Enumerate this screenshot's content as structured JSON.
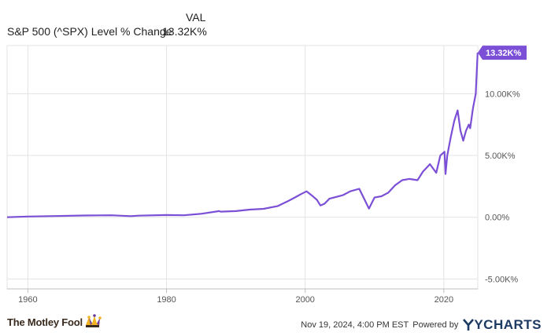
{
  "legend": {
    "column_header": "VAL",
    "series_name": "S&P 500 (^SPX) Level % Change",
    "series_value": "13.32K%"
  },
  "chart_data": {
    "type": "line",
    "x_ticks": [
      "1960",
      "1980",
      "2000",
      "2020"
    ],
    "y_ticks": [
      "-5.00K%",
      "0.00%",
      "5.00K%",
      "10.00K%"
    ],
    "xlim": [
      1957,
      2024.9
    ],
    "ylim": [
      -5800,
      13900
    ],
    "grid": true,
    "end_label": "13.32K%",
    "colors": {
      "line": "#7b4fd6",
      "grid": "#e3e3e3",
      "axis": "#bfbfbf",
      "label_bg": "#7b4fd6",
      "label_text": "#ffffff"
    },
    "series": [
      {
        "x": [
          1957.0,
          1960,
          1964,
          1968,
          1972,
          1974.8,
          1976,
          1980,
          1982.5,
          1985,
          1987.6,
          1987.8,
          1990,
          1992,
          1994,
          1996,
          1997.5,
          1998.5,
          1999.5,
          2000.2,
          2001,
          2001.7,
          2002.2,
          2002.8,
          2003.5,
          2004.5,
          2005.5,
          2006.5,
          2007.8,
          2008.5,
          2009.2,
          2010,
          2011,
          2012,
          2013,
          2014,
          2015,
          2016.2,
          2017,
          2018,
          2018.9,
          2019.5,
          2020.1,
          2020.25,
          2020.5,
          2021,
          2021.5,
          2021.99,
          2022.4,
          2022.8,
          2023.2,
          2023.6,
          2023.8,
          2024.2,
          2024.6,
          2024.88
        ],
        "y": [
          0,
          60,
          100,
          140,
          160,
          90,
          130,
          180,
          160,
          280,
          500,
          450,
          500,
          620,
          680,
          900,
          1300,
          1600,
          1900,
          2100,
          1750,
          1400,
          950,
          1100,
          1500,
          1650,
          1800,
          2100,
          2300,
          1500,
          700,
          1600,
          1700,
          2000,
          2600,
          3000,
          3100,
          3000,
          3700,
          4300,
          3600,
          5000,
          5300,
          3500,
          5000,
          6500,
          7800,
          8650,
          7000,
          6200,
          7000,
          7500,
          7200,
          8800,
          10000,
          13320
        ]
      }
    ]
  },
  "footer": {
    "brand_name": "The Motley Fool",
    "timestamp": "Nov 19, 2024, 4:00 PM EST",
    "powered_by": "Powered by",
    "provider": "YCHARTS"
  }
}
